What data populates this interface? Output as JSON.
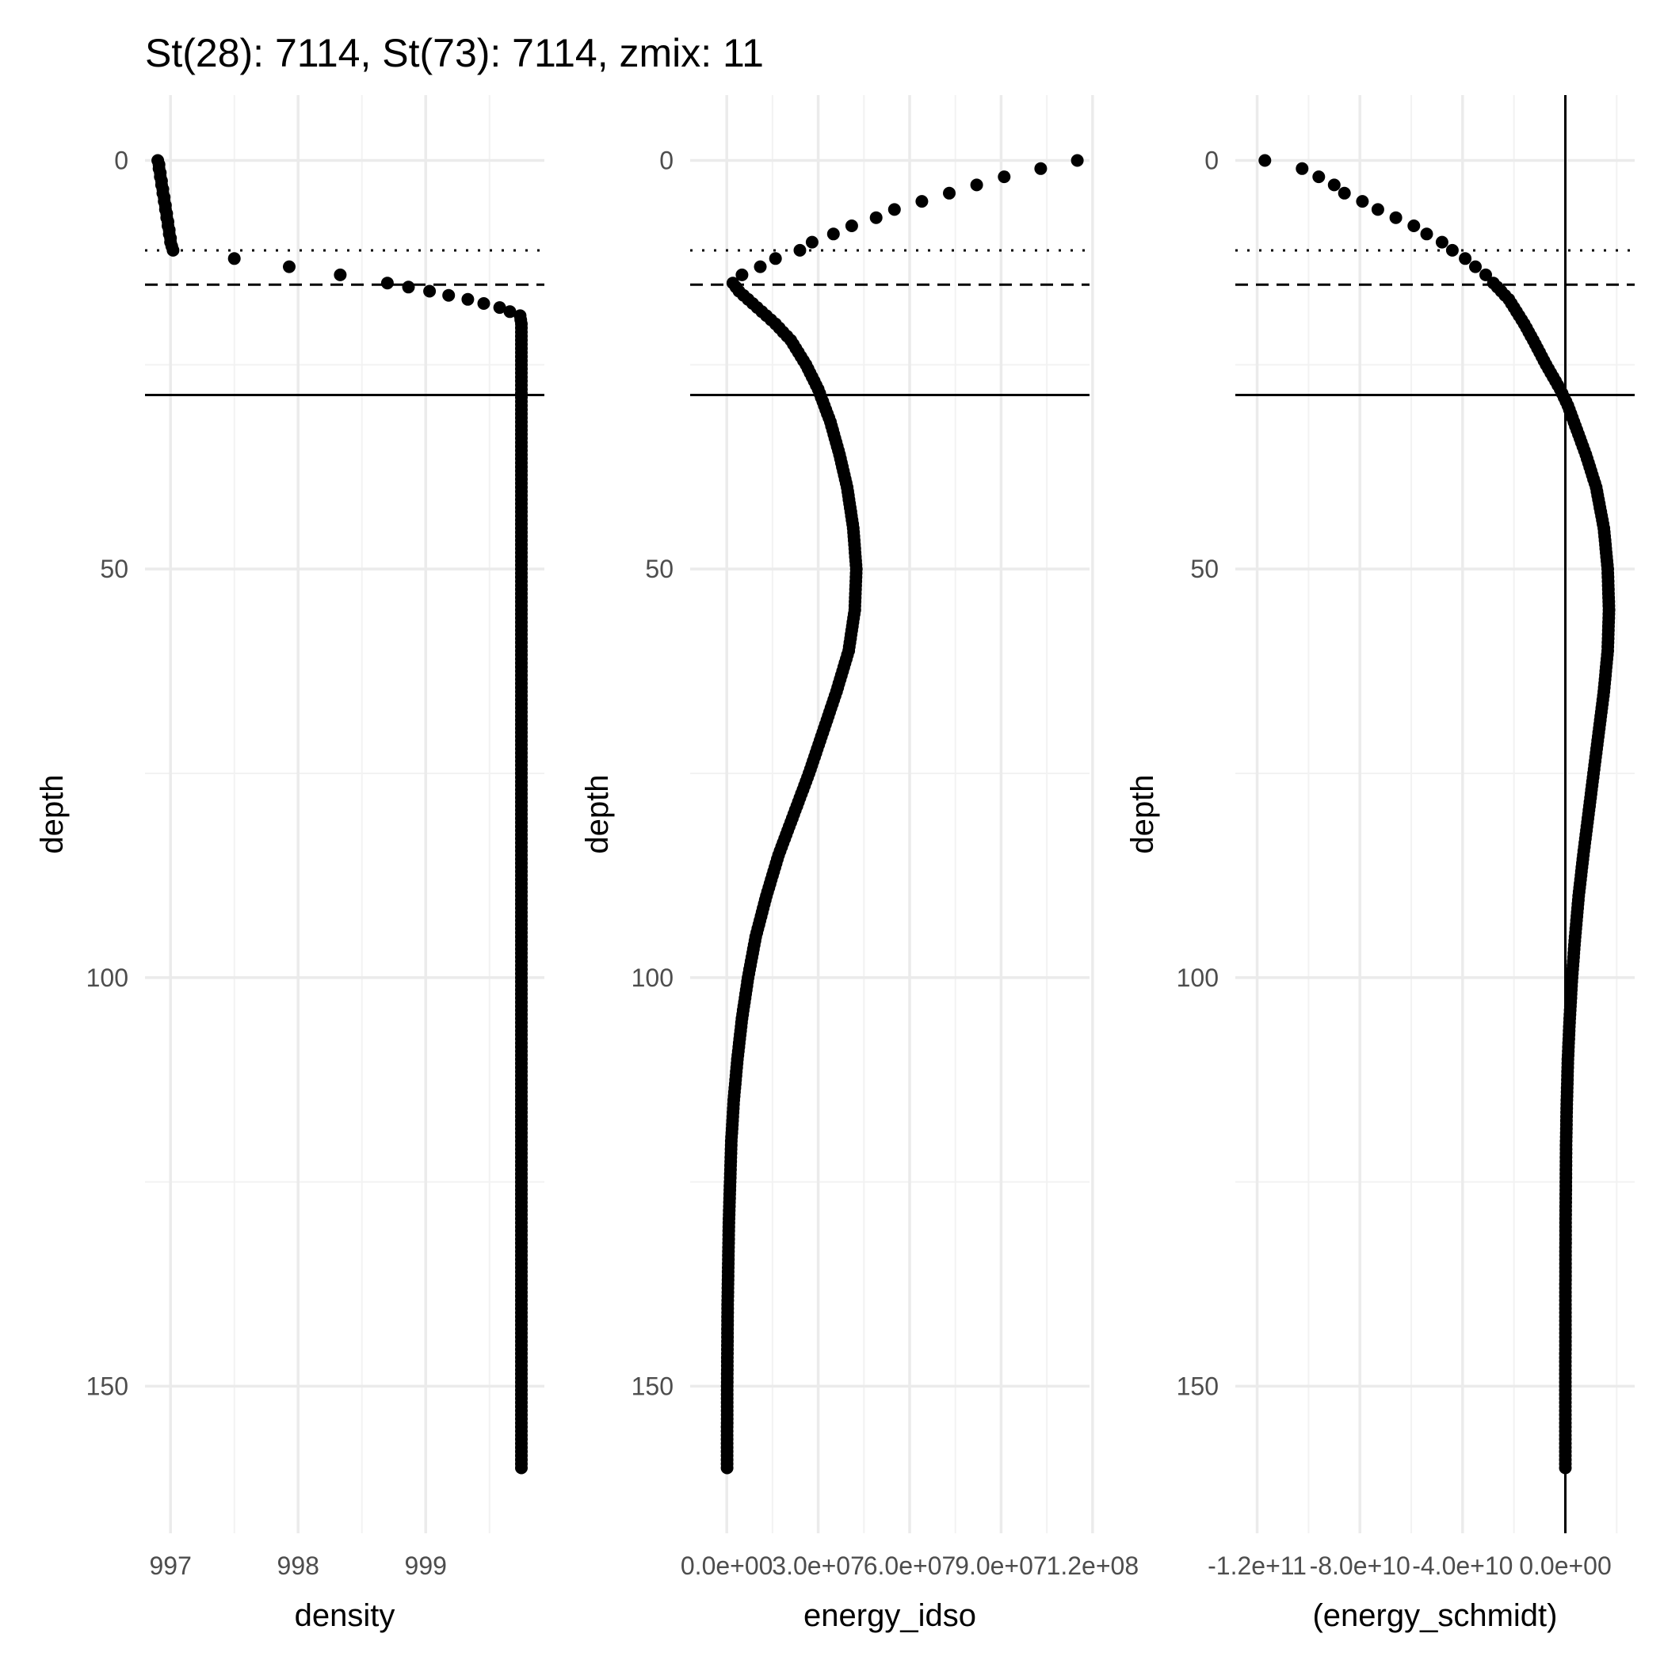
{
  "chart_data": {
    "title": "St(28): 7114, St(73): 7114, zmix: 11",
    "type": "scatter",
    "y_reverse": true,
    "grid": true,
    "reference_lines": {
      "zmix": 11,
      "dashed_depth": 15.2,
      "solid_depth": 28.7
    },
    "panels": [
      {
        "id": "density",
        "xlabel": "density",
        "ylabel": "depth",
        "xlim": [
          996.8,
          999.93
        ],
        "ylim": [
          168,
          -8
        ],
        "x_ticks": [
          997,
          998,
          999
        ],
        "x_tick_labels": [
          "997",
          "998",
          "999"
        ],
        "y_ticks": [
          0,
          50,
          100,
          150
        ],
        "y_tick_labels": [
          "0",
          "50",
          "100",
          "150"
        ],
        "vline": null,
        "series": {
          "depth": [
            0,
            0.5,
            1,
            1.5,
            2,
            2.5,
            3,
            3.5,
            4,
            4.5,
            5,
            5.5,
            6,
            6.5,
            7,
            7.5,
            8,
            8.5,
            9,
            9.5,
            10,
            10.5,
            11,
            12,
            13,
            14,
            15,
            16,
            17,
            18,
            19,
            20,
            25,
            30,
            40,
            50,
            60,
            70,
            80,
            90,
            100,
            110,
            120,
            130,
            140,
            150,
            160
          ],
          "value": [
            996.9,
            996.91,
            996.91,
            996.92,
            996.92,
            996.93,
            996.93,
            996.94,
            996.94,
            996.95,
            996.95,
            996.96,
            996.96,
            996.97,
            996.97,
            996.98,
            996.98,
            996.99,
            996.99,
            997.0,
            997.0,
            997.01,
            997.02,
            997.5,
            997.93,
            998.33,
            998.7,
            999.03,
            999.33,
            999.58,
            999.74,
            999.75,
            999.75,
            999.75,
            999.75,
            999.75,
            999.75,
            999.75,
            999.75,
            999.75,
            999.75,
            999.75,
            999.75,
            999.75,
            999.75,
            999.75,
            999.75
          ]
        }
      },
      {
        "id": "energy_idso",
        "xlabel": "energy_idso",
        "ylabel": "depth",
        "xlim": [
          -12000000.0,
          119000000.0
        ],
        "ylim": [
          168,
          -8
        ],
        "x_ticks": [
          0,
          30000000,
          60000000,
          90000000,
          120000000
        ],
        "x_tick_labels": [
          "0.0e+00",
          "3.0e+07",
          "6.0e+07",
          "9.0e+07",
          "1.2e+08"
        ],
        "y_ticks": [
          0,
          50,
          100,
          150
        ],
        "y_tick_labels": [
          "0",
          "50",
          "100",
          "150"
        ],
        "vline": null,
        "series": {
          "depth": [
            0,
            1,
            2,
            3,
            4,
            5,
            6,
            7,
            8,
            9,
            10,
            11,
            12,
            13,
            14,
            15,
            16,
            17,
            18,
            20,
            22,
            25,
            28,
            32,
            36,
            40,
            45,
            50,
            55,
            60,
            65,
            70,
            75,
            80,
            85,
            90,
            95,
            100,
            105,
            110,
            115,
            120,
            130,
            140,
            150,
            160
          ],
          "value": [
            115000000,
            103000000,
            91000000,
            82000000,
            73000000,
            64000000,
            55000000,
            49000000,
            41000000,
            35000000,
            28000000,
            24000000,
            16000000,
            11000000,
            5000000,
            2000000,
            4000000,
            7000000,
            10000000,
            16000000,
            21000000,
            26000000,
            30000000,
            34000000,
            37000000,
            39500000,
            41500000,
            42500000,
            42000000,
            40000000,
            36000000,
            31500000,
            27000000,
            22000000,
            17000000,
            13000000,
            9500000,
            7000000,
            5000000,
            3500000,
            2300000,
            1500000,
            700000,
            300000,
            150000,
            100000
          ]
        }
      },
      {
        "id": "energy_schmidt",
        "xlabel": "(energy_schmidt)",
        "ylabel": "depth",
        "xlim": [
          -128500000000.0,
          27000000000.0
        ],
        "ylim": [
          168,
          -8
        ],
        "x_ticks": [
          -120000000000,
          -80000000000,
          -40000000000,
          0
        ],
        "x_tick_labels": [
          "-1.2e+11",
          "-8.0e+10",
          "-4.0e+10",
          "0.0e+00"
        ],
        "y_ticks": [
          0,
          50,
          100,
          150
        ],
        "y_tick_labels": [
          "0",
          "50",
          "100",
          "150"
        ],
        "vline": 0,
        "series": {
          "depth": [
            0,
            1,
            2,
            3,
            4,
            5,
            6,
            7,
            8,
            9,
            10,
            11,
            12,
            13,
            14,
            15,
            16,
            17,
            18,
            20,
            22,
            25,
            28,
            30,
            33,
            36,
            40,
            45,
            50,
            55,
            60,
            65,
            70,
            75,
            80,
            85,
            90,
            95,
            100,
            105,
            110,
            115,
            120,
            130,
            140,
            150,
            160
          ],
          "value": [
            -117000000000.0,
            -102500000000.0,
            -96000000000.0,
            -90000000000.0,
            -86000000000.0,
            -79000000000.0,
            -73000000000.0,
            -66000000000.0,
            -59000000000.0,
            -54000000000.0,
            -48000000000.0,
            -44000000000.0,
            -39000000000.0,
            -35000000000.0,
            -31000000000.0,
            -28000000000.0,
            -25000000000.0,
            -22000000000.0,
            -20000000000.0,
            -16000000000.0,
            -12500000000.0,
            -7500000000.0,
            -2000000000.0,
            1000000000.0,
            4500000000.0,
            8000000000.0,
            12000000000.0,
            15000000000.0,
            16500000000.0,
            17000000000.0,
            16500000000.0,
            15000000000.0,
            13000000000.0,
            11000000000.0,
            9000000000.0,
            7000000000.0,
            5200000000.0,
            3800000000.0,
            2600000000.0,
            1700000000.0,
            1000000000.0,
            600000000.0,
            300000000.0,
            100000000.0,
            30000000.0,
            10000000.0,
            0
          ]
        }
      }
    ]
  }
}
